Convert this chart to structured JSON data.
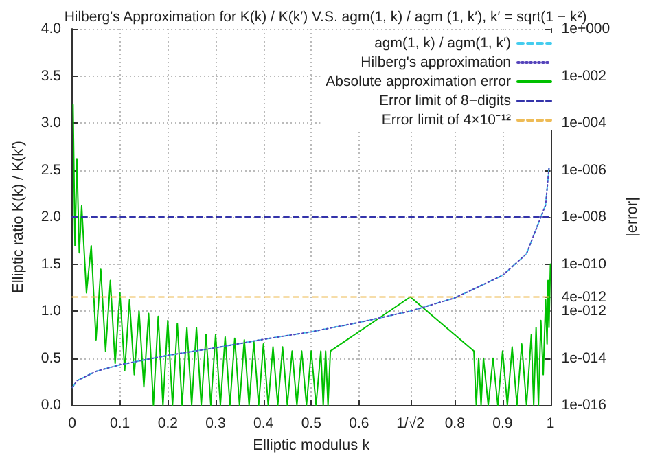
{
  "chart_data": {
    "type": "line",
    "title": "Hilberg's Approximation for K(k) / K(k′) V.S. agm(1, k) / agm (1, k′), k′ = sqrt(1 − k²)",
    "xlabel": "Elliptic modulus k",
    "ylabel": "Elliptic ratio K(k) / K(k′)",
    "y2label": "|error|",
    "xlim": [
      0,
      1
    ],
    "xticks": [
      0,
      0.1,
      0.2,
      0.3,
      0.4,
      0.5,
      0.6,
      {
        "value": 0.7071,
        "label": "1/√2"
      },
      0.8,
      0.9,
      1
    ],
    "ylim": [
      0,
      4
    ],
    "yticks": [
      {
        "value": 0,
        "label": "0.0"
      },
      {
        "value": 0.5,
        "label": "0.5"
      },
      {
        "value": 1,
        "label": "1.0"
      },
      {
        "value": 1.5,
        "label": "1.5"
      },
      {
        "value": 2,
        "label": "2.0"
      },
      {
        "value": 2.5,
        "label": "2.5"
      },
      {
        "value": 3,
        "label": "3.0"
      },
      {
        "value": 3.5,
        "label": "3.5"
      },
      {
        "value": 4,
        "label": "4.0"
      }
    ],
    "y2lim": [
      1e-16,
      1
    ],
    "y2ticks": [
      {
        "value": 1,
        "label": "1e+000"
      },
      {
        "value": 0.01,
        "label": "1e-002"
      },
      {
        "value": 0.0001,
        "label": "1e-004"
      },
      {
        "value": 1e-06,
        "label": "1e-006"
      },
      {
        "value": 1e-08,
        "label": "1e-008"
      },
      {
        "value": 1e-10,
        "label": "1e-010"
      },
      {
        "value": 4e-12,
        "label": "4e-012"
      },
      {
        "value": 1e-12,
        "label": "1e-012"
      },
      {
        "value": 1e-14,
        "label": "1e-014"
      },
      {
        "value": 1e-16,
        "label": "1e-016"
      }
    ],
    "log": "y2",
    "grid": true,
    "legend": "top right",
    "marker": "none",
    "series": [
      {
        "name": "agm(1, k) / agm(1, k′)",
        "color": "#44ccee",
        "line_style": "dashed",
        "x": [
          0.001,
          0.01,
          0.05,
          0.1,
          0.2,
          0.3,
          0.4,
          0.5,
          0.6,
          0.7071,
          0.8,
          0.9,
          0.95,
          0.99,
          0.997
        ],
        "values": [
          0.19,
          0.26,
          0.36,
          0.43,
          0.53,
          0.61,
          0.7,
          0.78,
          0.88,
          1,
          1.14,
          1.38,
          1.61,
          2.13,
          2.52
        ]
      },
      {
        "name": "Hilberg's approximation",
        "color": "#5544bb",
        "line_style": "dotted",
        "x": [
          0.001,
          0.01,
          0.05,
          0.1,
          0.2,
          0.3,
          0.4,
          0.5,
          0.6,
          0.7071,
          0.8,
          0.9,
          0.95,
          0.99,
          0.997
        ],
        "values": [
          0.19,
          0.26,
          0.36,
          0.43,
          0.53,
          0.61,
          0.7,
          0.78,
          0.88,
          1,
          1.14,
          1.38,
          1.61,
          2.13,
          2.52
        ]
      },
      {
        "name": "Absolute approximation error",
        "color": "#00c000",
        "line_style": "solid",
        "axis": "y2",
        "x": [
          0.002,
          0.006,
          0.01,
          0.015,
          0.02,
          0.03,
          0.04,
          0.05,
          0.06,
          0.07,
          0.08,
          0.09,
          0.1,
          0.11,
          0.12,
          0.13,
          0.14,
          0.15,
          0.16,
          0.17,
          0.18,
          0.19,
          0.2,
          0.21,
          0.22,
          0.23,
          0.24,
          0.25,
          0.26,
          0.27,
          0.28,
          0.29,
          0.3,
          0.31,
          0.32,
          0.33,
          0.34,
          0.35,
          0.36,
          0.37,
          0.38,
          0.39,
          0.4,
          0.41,
          0.42,
          0.43,
          0.44,
          0.45,
          0.46,
          0.47,
          0.48,
          0.49,
          0.5,
          0.51,
          0.52,
          0.525,
          0.53,
          0.535,
          0.54,
          0.7071,
          0.84,
          0.845,
          0.85,
          0.855,
          0.86,
          0.87,
          0.88,
          0.89,
          0.9,
          0.91,
          0.92,
          0.93,
          0.94,
          0.95,
          0.96,
          0.965,
          0.97,
          0.975,
          0.98,
          0.985,
          0.99,
          0.993,
          0.995,
          0.997,
          1
        ],
        "values": [
          0.0006,
          6e-10,
          3e-06,
          3e-10,
          3e-08,
          6e-12,
          6e-10,
          6e-14,
          6e-11,
          2e-14,
          2e-11,
          6e-15,
          6e-12,
          3e-15,
          3e-12,
          2e-15,
          1e-12,
          6e-16,
          8e-13,
          1e-16,
          6e-13,
          1e-16,
          4e-13,
          1e-16,
          3e-13,
          1e-16,
          2e-13,
          1e-16,
          2e-13,
          1e-16,
          1e-13,
          1e-16,
          1e-13,
          1e-16,
          8e-14,
          1e-16,
          7e-14,
          1e-16,
          6e-14,
          1e-16,
          5e-14,
          1e-16,
          4e-14,
          1e-16,
          3e-14,
          1e-16,
          3e-14,
          1e-16,
          2e-14,
          1e-16,
          2e-14,
          1e-16,
          2e-14,
          1e-16,
          2e-14,
          1e-16,
          2e-14,
          1e-16,
          2e-14,
          4e-12,
          2e-14,
          1e-16,
          1e-14,
          1e-16,
          1e-14,
          1e-16,
          1e-14,
          1e-16,
          2e-14,
          1e-16,
          3e-14,
          1e-16,
          4e-14,
          1e-16,
          1e-13,
          1e-16,
          2e-13,
          1e-16,
          4e-13,
          2e-15,
          3e-12,
          4e-14,
          2e-11,
          2e-13,
          1e-10
        ]
      },
      {
        "name": "Error limit of 8−digits",
        "color": "#3333aa",
        "line_style": "dashed",
        "axis": "y2",
        "x": [
          0,
          1
        ],
        "values": [
          1e-08,
          1e-08
        ]
      },
      {
        "name": "Error limit of 4×10⁻¹²",
        "color": "#eebb55",
        "line_style": "dashed",
        "axis": "y2",
        "x": [
          0,
          1
        ],
        "values": [
          4e-12,
          4e-12
        ]
      }
    ]
  }
}
